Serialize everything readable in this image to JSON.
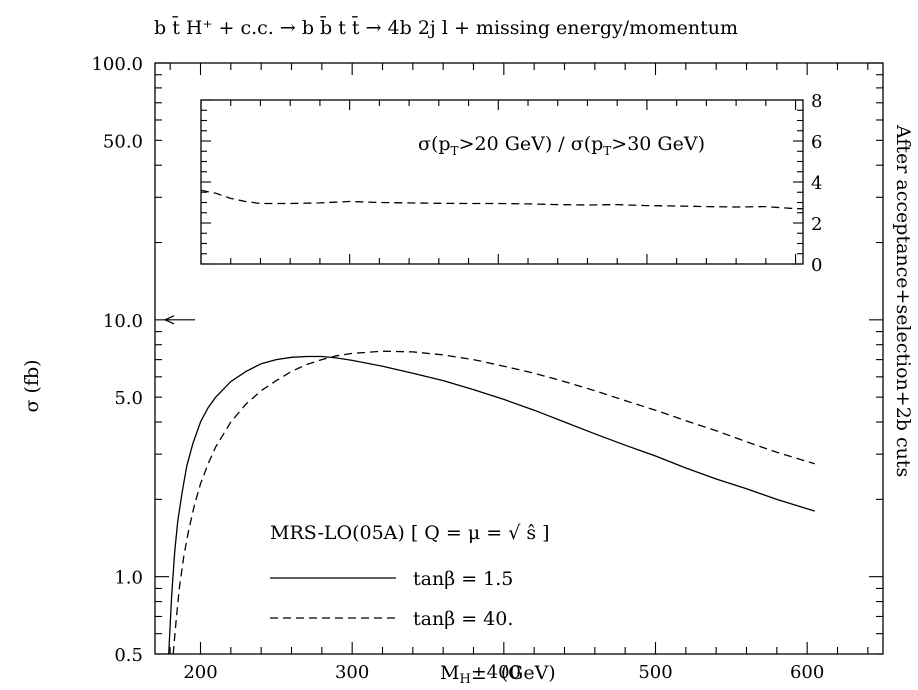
{
  "title": "b t̄ H⁺ + c.c. → b b̄ t t̄ → 4b 2j l + missing energy/momentum",
  "chart_data": [
    {
      "type": "line",
      "x_scale": "linear",
      "y_scale": "log",
      "xlim": [
        170,
        650
      ],
      "ylim": [
        0.5,
        100
      ],
      "x_ticks": [
        200,
        300,
        400,
        500,
        600
      ],
      "x_tick_labels": [
        "200",
        "300",
        "400",
        "500",
        "600"
      ],
      "y_ticks": [
        0.5,
        1,
        5,
        10,
        50,
        100
      ],
      "y_tick_labels": [
        "0.5",
        "1.0",
        "5.0",
        "10.0",
        "50.0",
        "100.0"
      ],
      "xlabel": "M_H± (GeV)",
      "xlabel_main": "M",
      "xlabel_sub": "H",
      "xlabel_pm": "±",
      "xlabel_unit": "(GeV)",
      "ylabel": "σ (fb)",
      "right_label": "After acceptance+selection+2b cuts",
      "legend_title": "MRS-LO(05A) [ Q = μ = √ ŝ ]",
      "series": [
        {
          "name": "tanβ = 1.5",
          "style": "solid",
          "x": [
            179,
            181,
            183,
            185,
            188,
            191,
            195,
            200,
            205,
            210,
            220,
            230,
            240,
            250,
            260,
            270,
            280,
            290,
            300,
            320,
            340,
            360,
            380,
            400,
            420,
            440,
            460,
            480,
            500,
            520,
            540,
            560,
            580,
            605
          ],
          "y": [
            0.5,
            0.85,
            1.25,
            1.65,
            2.15,
            2.7,
            3.3,
            4.0,
            4.55,
            5.0,
            5.75,
            6.3,
            6.75,
            7.0,
            7.15,
            7.2,
            7.2,
            7.1,
            6.95,
            6.6,
            6.2,
            5.8,
            5.35,
            4.9,
            4.45,
            4.0,
            3.6,
            3.25,
            2.95,
            2.65,
            2.4,
            2.2,
            2.0,
            1.8
          ]
        },
        {
          "name": "tanβ = 40.",
          "style": "dashed",
          "x": [
            182,
            184,
            186,
            189,
            192,
            196,
            200,
            205,
            210,
            220,
            230,
            240,
            250,
            260,
            270,
            280,
            290,
            300,
            320,
            340,
            360,
            380,
            400,
            420,
            440,
            460,
            480,
            500,
            520,
            540,
            560,
            580,
            605
          ],
          "y": [
            0.5,
            0.68,
            0.9,
            1.2,
            1.5,
            1.9,
            2.3,
            2.75,
            3.2,
            4.0,
            4.7,
            5.3,
            5.8,
            6.3,
            6.7,
            7.0,
            7.25,
            7.4,
            7.55,
            7.5,
            7.3,
            7.0,
            6.6,
            6.2,
            5.75,
            5.3,
            4.85,
            4.45,
            4.05,
            3.7,
            3.35,
            3.05,
            2.75
          ]
        }
      ],
      "annotations": [
        {
          "type": "arrow",
          "direction": "left",
          "y": 10
        }
      ]
    },
    {
      "type": "line",
      "role": "inset",
      "xlim": [
        200,
        605
      ],
      "ylim": [
        0,
        8
      ],
      "y_ticks": [
        0,
        2,
        4,
        6,
        8
      ],
      "y_tick_labels": [
        "0",
        "2",
        "4",
        "6",
        "8"
      ],
      "label": "σ(p_T>20 GeV) / σ(p_T>30 GeV)",
      "label_pre": "σ(p",
      "label_sub1": "T",
      "label_mid": ">20 GeV) / σ(p",
      "label_sub2": "T",
      "label_post": ">30 GeV)",
      "series": [
        {
          "style": "dashed",
          "x": [
            200,
            210,
            220,
            230,
            240,
            260,
            280,
            300,
            320,
            340,
            360,
            380,
            400,
            420,
            440,
            460,
            480,
            500,
            520,
            540,
            560,
            580,
            600,
            605
          ],
          "y": [
            3.6,
            3.45,
            3.2,
            3.05,
            2.95,
            2.95,
            2.98,
            3.05,
            3.0,
            2.98,
            2.96,
            2.95,
            2.95,
            2.93,
            2.9,
            2.88,
            2.9,
            2.85,
            2.83,
            2.8,
            2.78,
            2.8,
            2.7,
            2.7
          ]
        }
      ]
    }
  ]
}
